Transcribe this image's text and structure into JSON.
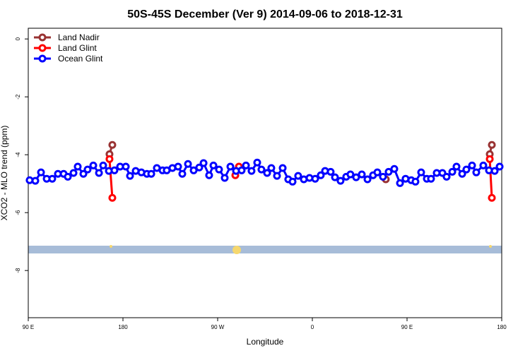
{
  "chart_data": {
    "type": "line",
    "title": "50S-45S December (Ver 9)   2014-09-06 to 2018-12-31",
    "x_label": "Longitude",
    "y_label": "XCO2 - MLO trend (ppm)",
    "xlim": [
      90,
      540
    ],
    "ylim": [
      -9.63,
      0.37
    ],
    "xticks": [
      {
        "value": 90,
        "label": "90 E"
      },
      180,
      {
        "value": 270,
        "label": "90 W"
      },
      {
        "value": 360,
        "label": "0"
      },
      {
        "value": 450,
        "label": "90 E"
      },
      {
        "value": 540,
        "label": "180"
      }
    ],
    "yticks": [
      0,
      -2,
      -4,
      -6,
      -8
    ],
    "legend": "top-left",
    "series": [
      {
        "name": "Land Nadir",
        "color": "#993333",
        "x": [
          167.2,
          169.9,
          null,
          429.8,
          null,
          528.6,
          530.6
        ],
        "values": [
          -3.98,
          -3.66,
          null,
          -4.85,
          null,
          -3.98,
          -3.66
        ]
      },
      {
        "name": "Land Glint",
        "color": "#ff0000",
        "x": [
          167.2,
          169.9,
          null,
          286.8,
          290.2,
          null,
          528.6,
          530.6
        ],
        "values": [
          -4.15,
          -5.49,
          null,
          -4.71,
          -4.41,
          null,
          -4.15,
          -5.49
        ]
      },
      {
        "name": "Ocean Glint",
        "color": "#0000ff",
        "x": [
          91.3,
          96.7,
          102.1,
          107.5,
          112.8,
          118.2,
          123.6,
          127.6,
          133.0,
          137.0,
          142.4,
          146.4,
          151.8,
          157.2,
          161.2,
          166.6,
          171.9,
          177.3,
          182.7,
          186.7,
          192.1,
          197.5,
          202.8,
          206.9,
          212.2,
          217.6,
          221.6,
          227.0,
          232.4,
          236.4,
          241.8,
          247.2,
          252.5,
          256.6,
          261.9,
          266.0,
          271.3,
          276.7,
          282.1,
          287.5,
          292.8,
          296.9,
          302.2,
          307.6,
          311.6,
          317.0,
          321.0,
          326.4,
          331.8,
          337.1,
          341.2,
          346.5,
          351.9,
          357.3,
          362.7,
          368.0,
          372.1,
          377.4,
          381.5,
          386.8,
          392.2,
          396.2,
          401.6,
          407.0,
          412.4,
          417.7,
          421.8,
          427.1,
          432.5,
          437.9,
          443.3,
          448.6,
          454.0,
          458.0,
          463.4,
          468.8,
          472.8,
          478.2,
          483.6,
          487.6,
          493.0,
          497.0,
          502.4,
          506.4,
          511.8,
          515.8,
          522.5,
          527.9,
          533.3,
          538.0
        ],
        "values": [
          -4.88,
          -4.9,
          -4.61,
          -4.83,
          -4.83,
          -4.66,
          -4.66,
          -4.76,
          -4.63,
          -4.41,
          -4.66,
          -4.51,
          -4.37,
          -4.63,
          -4.37,
          -4.56,
          -4.54,
          -4.41,
          -4.41,
          -4.73,
          -4.56,
          -4.61,
          -4.66,
          -4.66,
          -4.46,
          -4.54,
          -4.54,
          -4.46,
          -4.41,
          -4.66,
          -4.32,
          -4.54,
          -4.44,
          -4.29,
          -4.71,
          -4.37,
          -4.51,
          -4.8,
          -4.41,
          -4.56,
          -4.54,
          -4.37,
          -4.56,
          -4.27,
          -4.51,
          -4.63,
          -4.46,
          -4.73,
          -4.46,
          -4.85,
          -4.93,
          -4.73,
          -4.85,
          -4.8,
          -4.83,
          -4.71,
          -4.56,
          -4.59,
          -4.78,
          -4.9,
          -4.76,
          -4.68,
          -4.78,
          -4.68,
          -4.85,
          -4.71,
          -4.61,
          -4.76,
          -4.59,
          -4.49,
          -4.98,
          -4.83,
          -4.88,
          -4.93,
          -4.61,
          -4.83,
          -4.83,
          -4.63,
          -4.63,
          -4.76,
          -4.59,
          -4.41,
          -4.66,
          -4.51,
          -4.37,
          -4.61,
          -4.37,
          -4.54,
          -4.56,
          -4.41
        ]
      }
    ]
  }
}
